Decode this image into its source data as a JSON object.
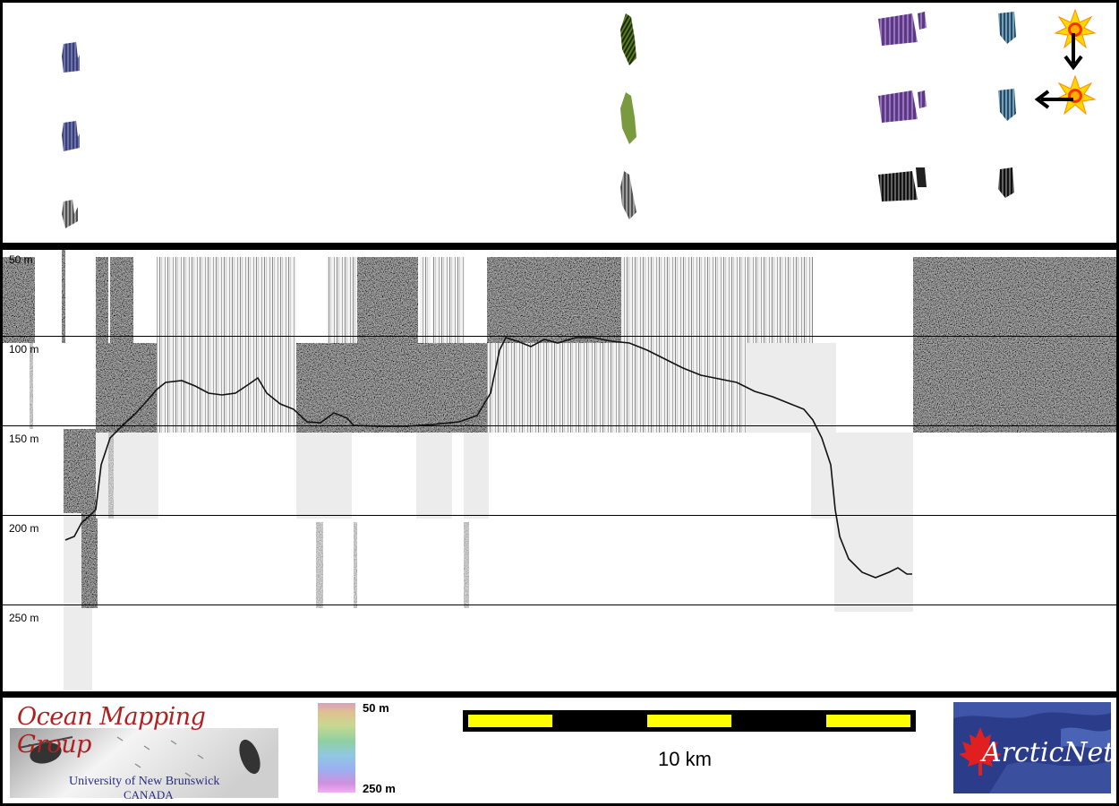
{
  "depth_labels": [
    "50 m",
    "100 m",
    "150 m",
    "200 m",
    "250 m"
  ],
  "logos": {
    "omg_title": "Ocean Mapping Group",
    "omg_subtitle": "University of New Brunswick",
    "omg_country": "CANADA",
    "arctic_wordmark": "ArcticNet"
  },
  "colorbar": {
    "top_label": "50 m",
    "bottom_label": "250 m"
  },
  "scale": {
    "label": "10 km"
  },
  "colors": {
    "scale_yellow": "#ffff00",
    "frame": "#000000",
    "omg_red": "#b02020",
    "arctic_blue": "#2b3c8a"
  },
  "icons": [
    "sun-icon",
    "arrow-down-icon",
    "arrow-left-icon",
    "maple-leaf-icon"
  ]
}
